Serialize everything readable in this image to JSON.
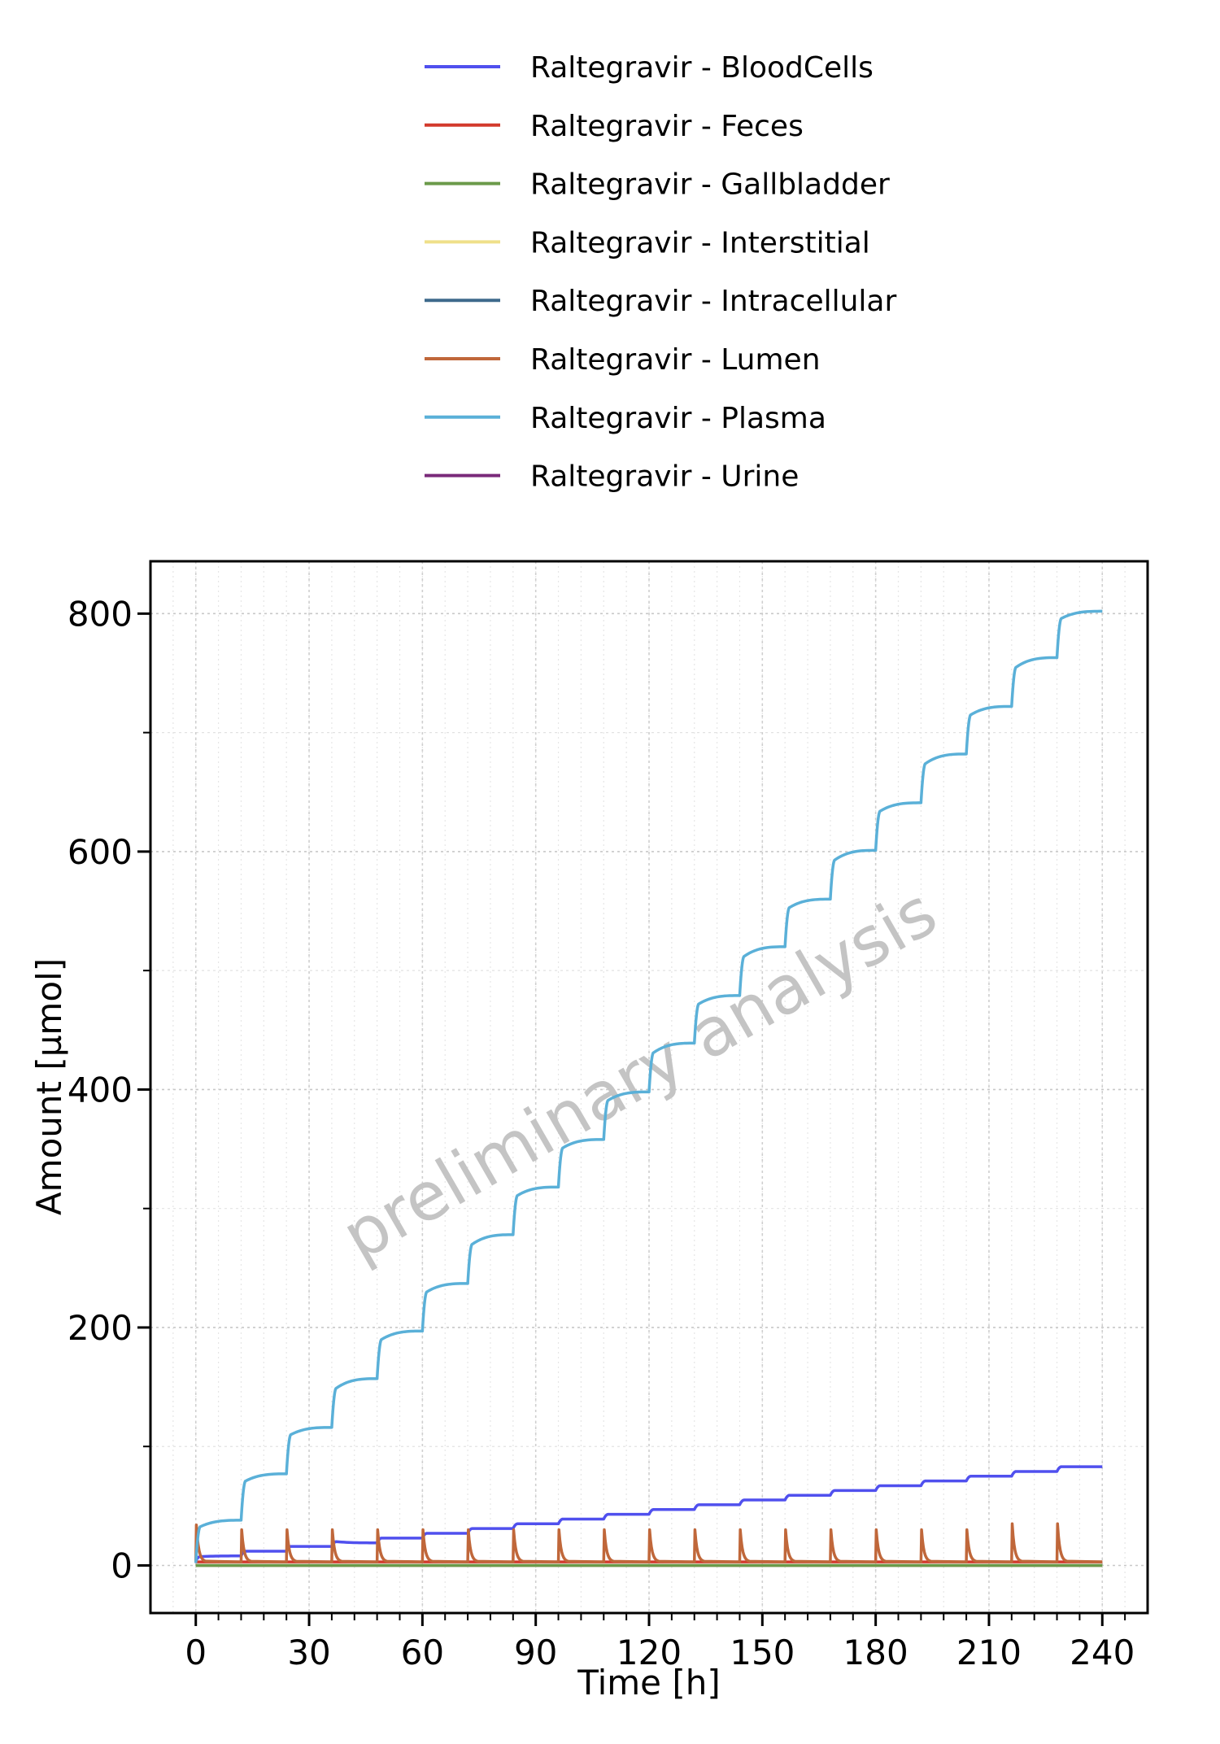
{
  "chart_data": {
    "type": "line",
    "title": "",
    "xlabel": "Time [h]",
    "ylabel": "Amount [µmol]",
    "xlim": [
      -12,
      252
    ],
    "ylim": [
      -40,
      844
    ],
    "xticks": [
      0,
      30,
      60,
      90,
      120,
      150,
      180,
      210,
      240
    ],
    "yticks": [
      0,
      200,
      400,
      600,
      800
    ],
    "grid": true,
    "legend_position": "top",
    "watermark": "preliminary analysis",
    "dosing_interval_h": 12,
    "series": [
      {
        "name": "Raltegravir - BloodCells",
        "color": "#5050ee",
        "x": [
          0,
          12,
          24,
          36,
          48,
          60,
          72,
          84,
          96,
          108,
          120,
          132,
          144,
          156,
          168,
          180,
          192,
          204,
          216,
          228,
          240
        ],
        "y": [
          4,
          8,
          12,
          16,
          19,
          23,
          27,
          31,
          35,
          39,
          43,
          47,
          51,
          55,
          59,
          63,
          67,
          71,
          75,
          79,
          83
        ],
        "jump": 4
      },
      {
        "name": "Raltegravir - Feces",
        "color": "#d33a2c",
        "x": [
          0,
          240
        ],
        "y": [
          3,
          3
        ]
      },
      {
        "name": "Raltegravir - Gallbladder",
        "color": "#6b9a4a",
        "x": [
          0,
          240
        ],
        "y": [
          0,
          0
        ]
      },
      {
        "name": "Raltegravir - Interstitial",
        "color": "#efe08a",
        "x": [
          0,
          240
        ],
        "y": [
          0,
          0
        ]
      },
      {
        "name": "Raltegravir - Intracellular",
        "color": "#3e6a8c",
        "x": [
          0,
          240
        ],
        "y": [
          0,
          0
        ]
      },
      {
        "name": "Raltegravir - Lumen",
        "color": "#c0673a",
        "x": [
          0,
          12,
          24,
          36,
          48,
          60,
          72,
          84,
          96,
          108,
          120,
          132,
          144,
          156,
          168,
          180,
          192,
          204,
          216,
          228
        ],
        "y": [
          34,
          30,
          30,
          30,
          30,
          30,
          30,
          30,
          30,
          30,
          30,
          30,
          30,
          30,
          30,
          30,
          30,
          30,
          35,
          35
        ],
        "spike_baseline": 3
      },
      {
        "name": "Raltegravir - Plasma",
        "color": "#5ab0d8",
        "x": [
          0,
          12,
          24,
          36,
          48,
          60,
          72,
          84,
          96,
          108,
          120,
          132,
          144,
          156,
          168,
          180,
          192,
          204,
          216,
          228,
          240
        ],
        "y": [
          2,
          38,
          77,
          116,
          157,
          197,
          237,
          278,
          318,
          358,
          398,
          439,
          479,
          520,
          560,
          601,
          641,
          682,
          722,
          763,
          802
        ],
        "jump": 33
      },
      {
        "name": "Raltegravir - Urine",
        "color": "#7a2a7a",
        "x": [
          0,
          240
        ],
        "y": [
          0,
          0
        ]
      }
    ]
  }
}
